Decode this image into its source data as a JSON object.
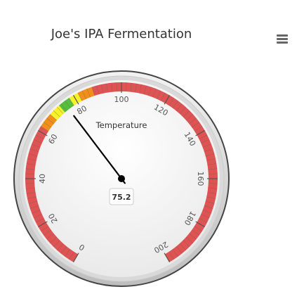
{
  "chart_data": {
    "type": "gauge",
    "title": "Joe's IPA Fermentation",
    "subtitle": "Temperature",
    "value": 75.2,
    "value_label": "75.2",
    "min": 0,
    "max": 200,
    "tick_labels": [
      "0",
      "20",
      "40",
      "60",
      "80",
      "100",
      "120",
      "140",
      "160",
      "180",
      "200"
    ],
    "bands": [
      {
        "from": 0,
        "to": 62,
        "color": "#df5353"
      },
      {
        "from": 62,
        "to": 68,
        "color": "#f28f1b"
      },
      {
        "from": 68,
        "to": 73,
        "color": "#f7f12a"
      },
      {
        "from": 73,
        "to": 78,
        "color": "#55bf3b"
      },
      {
        "from": 78,
        "to": 82,
        "color": "#f7f12a"
      },
      {
        "from": 82,
        "to": 88,
        "color": "#f28f1b"
      },
      {
        "from": 88,
        "to": 200,
        "color": "#df5353"
      }
    ]
  },
  "menu": {
    "icon": "hamburger-menu-icon"
  }
}
